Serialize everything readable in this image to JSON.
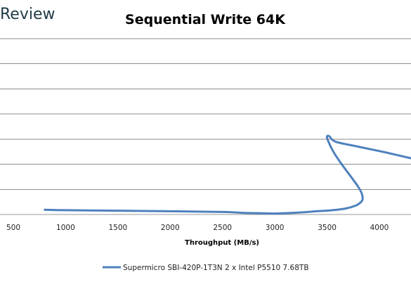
{
  "watermark": "Review",
  "chart_data": {
    "type": "line",
    "title": "Sequential Write 64K",
    "xlabel": "Throughput (MB/s)",
    "ylabel": "",
    "xlim": [
      500,
      4300
    ],
    "x_ticks": [
      "500",
      "1000",
      "1500",
      "2000",
      "2500",
      "3000",
      "3500",
      "4000"
    ],
    "y_grid_count": 7,
    "grid": true,
    "legend_position": "bottom",
    "color": "#4e81bd",
    "series": [
      {
        "name": "Supermicro SBI-420P-1T3N 2 x Intel P5510 7.68TB",
        "x": [
          800,
          1000,
          1500,
          2000,
          2500,
          2750,
          3000,
          3200,
          3400,
          3550,
          3680,
          3770,
          3820,
          3840,
          3830,
          3790,
          3720,
          3640,
          3560,
          3500,
          3520,
          3580,
          3800,
          4050,
          4300
        ],
        "y": [
          0.19,
          0.17,
          0.15,
          0.13,
          0.1,
          0.06,
          0.04,
          0.07,
          0.13,
          0.17,
          0.24,
          0.35,
          0.48,
          0.62,
          0.85,
          1.15,
          1.55,
          2.0,
          2.5,
          3.04,
          3.12,
          2.9,
          2.7,
          2.48,
          2.24
        ]
      }
    ]
  }
}
